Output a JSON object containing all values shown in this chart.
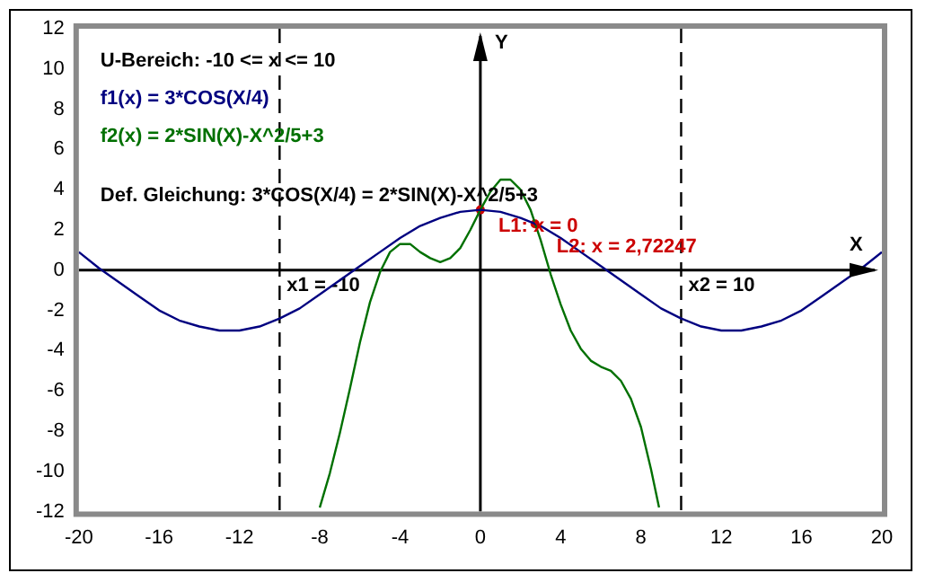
{
  "chart_data": {
    "type": "line",
    "xlabel": "X",
    "ylabel": "Y",
    "xlim": [
      -20,
      20
    ],
    "ylim": [
      -12,
      12
    ],
    "xticks": [
      -20,
      -16,
      -12,
      -8,
      -4,
      0,
      4,
      8,
      12,
      16,
      20
    ],
    "yticks": [
      -12,
      -10,
      -8,
      -6,
      -4,
      -2,
      0,
      2,
      4,
      6,
      8,
      10,
      12
    ],
    "marker": "none",
    "line_style": "solid",
    "series": [
      {
        "name": "f1(x) = 3*COS(X/4)",
        "color": "#000080",
        "x": [
          -20,
          -19,
          -18,
          -17,
          -16,
          -15,
          -14,
          -13,
          -12,
          -11,
          -10,
          -9,
          -8,
          -7,
          -6,
          -5,
          -4,
          -3,
          -2,
          -1,
          0,
          1,
          2,
          3,
          4,
          5,
          6,
          7,
          8,
          9,
          10,
          11,
          12,
          13,
          14,
          15,
          16,
          17,
          18,
          19,
          20
        ],
        "values": [
          0.9,
          0.1,
          -0.6,
          -1.3,
          -2.0,
          -2.5,
          -2.8,
          -3.0,
          -3.0,
          -2.8,
          -2.4,
          -1.9,
          -1.2,
          -0.5,
          0.2,
          0.9,
          1.6,
          2.2,
          2.6,
          2.9,
          3.0,
          2.9,
          2.6,
          2.2,
          1.6,
          0.9,
          0.2,
          -0.5,
          -1.2,
          -1.9,
          -2.4,
          -2.8,
          -3.0,
          -3.0,
          -2.8,
          -2.5,
          -2.0,
          -1.3,
          -0.6,
          0.1,
          0.9
        ]
      },
      {
        "name": "f2(x) = 2*SIN(X)-X^2/5+3",
        "color": "#007000",
        "x": [
          -8,
          -7.5,
          -7,
          -6.5,
          -6,
          -5.5,
          -5,
          -4.5,
          -4,
          -3.5,
          -3,
          -2.5,
          -2,
          -1.5,
          -1,
          -0.5,
          0,
          0.5,
          1,
          1.5,
          2,
          2.5,
          3,
          3.5,
          4,
          4.5,
          5,
          5.5,
          6,
          6.5,
          7,
          7.5,
          8,
          8.5,
          8.9
        ],
        "values": [
          -11.8,
          -10.1,
          -8.1,
          -5.9,
          -3.6,
          -1.6,
          -0.1,
          0.9,
          1.3,
          1.3,
          0.9,
          0.6,
          0.4,
          0.6,
          1.1,
          2.0,
          3.0,
          3.9,
          4.5,
          4.5,
          4.0,
          3.0,
          1.5,
          -0.2,
          -1.7,
          -3.0,
          -3.9,
          -4.5,
          -4.8,
          -5.0,
          -5.5,
          -6.4,
          -7.8,
          -9.9,
          -11.8
        ]
      }
    ],
    "ref_lines": [
      {
        "axis": "x",
        "value": -10,
        "label": "x1 = -10",
        "line_style": "dashed",
        "color": "#000000"
      },
      {
        "axis": "x",
        "value": 10,
        "label": "x2 = 10",
        "line_style": "dashed",
        "color": "#000000"
      }
    ],
    "annotations": [
      "U-Bereich: -10 <= x <= 10",
      "Def. Gleichung: 3*COS(X/4) = 2*SIN(X)-X^2/5+3",
      {
        "text": "L1: x = 0",
        "x": 0,
        "y": 3
      },
      {
        "text": "L2: x = 2,72247",
        "x": 2.72247,
        "y": 2.3
      }
    ]
  }
}
